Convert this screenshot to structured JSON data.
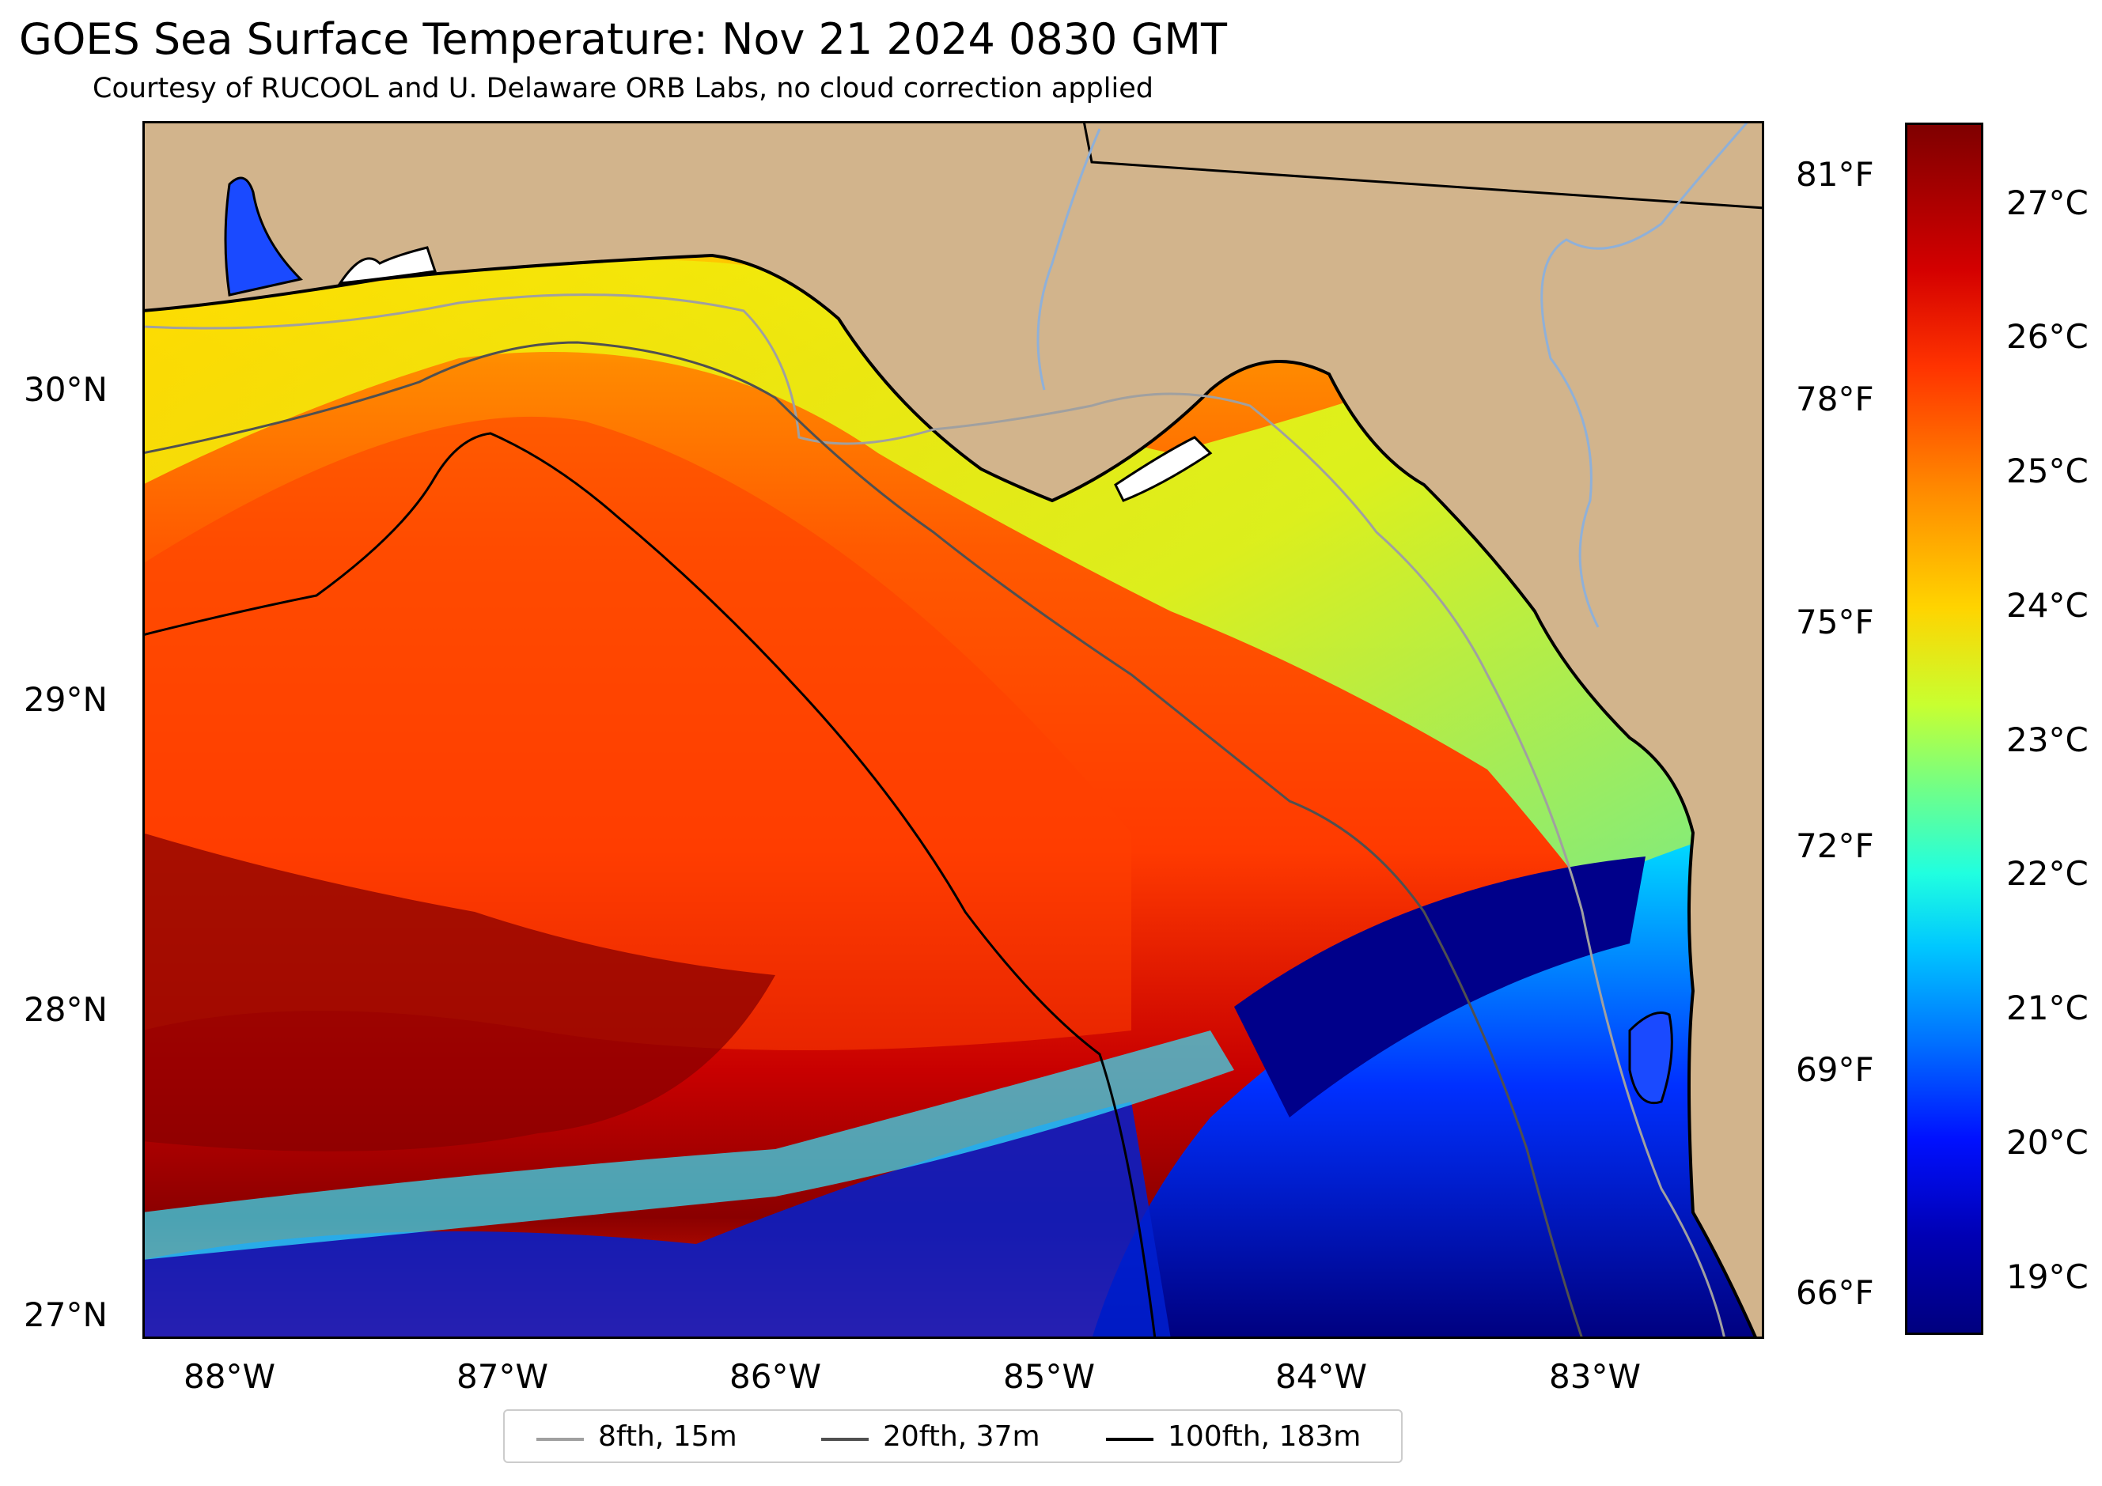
{
  "title": "GOES Sea Surface Temperature: Nov 21 2024 0830 GMT",
  "subtitle": "Courtesy of RUCOOL and U. Delaware ORB Labs, no cloud correction applied",
  "lat_labels": [
    "30°N",
    "29°N",
    "28°N",
    "27°N"
  ],
  "lon_labels": [
    "88°W",
    "87°W",
    "86°W",
    "85°W",
    "84°W",
    "83°W"
  ],
  "temp_f_labels": [
    "81°F",
    "78°F",
    "75°F",
    "72°F",
    "69°F",
    "66°F"
  ],
  "colorbar_labels": [
    "27°C",
    "26°C",
    "25°C",
    "24°C",
    "23°C",
    "22°C",
    "21°C",
    "20°C",
    "19°C"
  ],
  "legend": [
    {
      "label": "8fth, 15m",
      "color": "#a0a0a0"
    },
    {
      "label": "20fth, 37m",
      "color": "#505050"
    },
    {
      "label": "100fth, 183m",
      "color": "#000000"
    }
  ],
  "colors": {
    "land": "#d2b48c",
    "river": "#8fb0d8",
    "warm_max": "#7f0000",
    "cold_min": "#00007f"
  }
}
